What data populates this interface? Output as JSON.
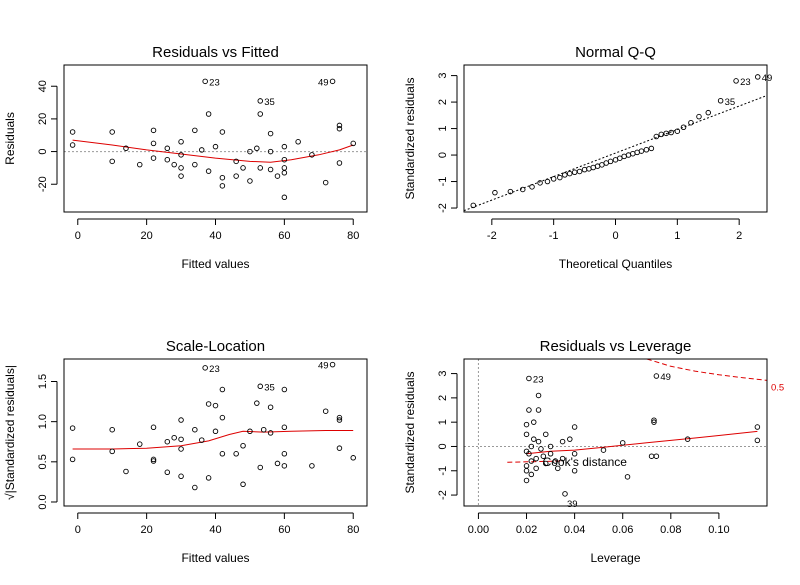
{
  "chart_data": [
    {
      "type": "scatter",
      "title": "Residuals vs Fitted",
      "xlabel": "Fitted values",
      "ylabel": "Residuals",
      "xlim": [
        -4,
        84
      ],
      "ylim": [
        -37,
        53
      ],
      "xticks": [
        0,
        20,
        40,
        60,
        80
      ],
      "yticks": [
        -20,
        0,
        20,
        40
      ],
      "reference_line": {
        "kind": "h",
        "value": 0,
        "style": "dotted",
        "color": "#999999"
      },
      "points": [
        [
          -1.5,
          12
        ],
        [
          -1.5,
          4
        ],
        [
          10,
          12
        ],
        [
          10,
          -6
        ],
        [
          14,
          2
        ],
        [
          18,
          -8
        ],
        [
          22,
          13
        ],
        [
          22,
          5
        ],
        [
          22,
          -4
        ],
        [
          26,
          2
        ],
        [
          26,
          -5
        ],
        [
          28,
          -8
        ],
        [
          30,
          6
        ],
        [
          30,
          -2
        ],
        [
          30,
          -10
        ],
        [
          30,
          -15
        ],
        [
          34,
          13
        ],
        [
          34,
          -8
        ],
        [
          36,
          1
        ],
        [
          37,
          43
        ],
        [
          38,
          23
        ],
        [
          38,
          -12
        ],
        [
          40,
          3
        ],
        [
          42,
          -16
        ],
        [
          42,
          12
        ],
        [
          42,
          -21
        ],
        [
          46,
          -6
        ],
        [
          46,
          -15
        ],
        [
          48,
          -10
        ],
        [
          50,
          0
        ],
        [
          50,
          -18
        ],
        [
          52,
          2
        ],
        [
          53,
          31
        ],
        [
          53,
          23
        ],
        [
          53,
          -10
        ],
        [
          56,
          0
        ],
        [
          56,
          11
        ],
        [
          56,
          -11
        ],
        [
          58,
          -15
        ],
        [
          60,
          3
        ],
        [
          60,
          -5
        ],
        [
          60,
          -10
        ],
        [
          60,
          -28
        ],
        [
          60,
          -13
        ],
        [
          64,
          6
        ],
        [
          68,
          -2
        ],
        [
          72,
          -19
        ],
        [
          74,
          43
        ],
        [
          76,
          16
        ],
        [
          76,
          14
        ],
        [
          76,
          -7
        ],
        [
          80,
          5
        ]
      ],
      "smoother": [
        [
          -1.5,
          7
        ],
        [
          10,
          4
        ],
        [
          20,
          1
        ],
        [
          30,
          -1.5
        ],
        [
          40,
          -4
        ],
        [
          50,
          -6
        ],
        [
          56,
          -6.5
        ],
        [
          62,
          -5
        ],
        [
          70,
          -2
        ],
        [
          76,
          1
        ],
        [
          80,
          4
        ]
      ],
      "smoother_color": "#dd0000",
      "annotations": [
        {
          "text": "23",
          "x": 37,
          "y": 43
        },
        {
          "text": "35",
          "x": 53,
          "y": 31
        },
        {
          "text": "49",
          "x": 74,
          "y": 43
        }
      ]
    },
    {
      "type": "scatter",
      "title": "Normal Q-Q",
      "xlabel": "Theoretical Quantiles",
      "ylabel": "Standardized residuals",
      "xlim": [
        -2.45,
        2.45
      ],
      "ylim": [
        -2.15,
        3.4
      ],
      "xticks": [
        -2,
        -1,
        0,
        1,
        2
      ],
      "yticks": [
        -2,
        -1,
        0,
        1,
        2,
        3
      ],
      "reference_line": {
        "kind": "line",
        "x1": -2.45,
        "y1": -2.1,
        "x2": 2.45,
        "y2": 2.25,
        "style": "dotted",
        "color": "#000000"
      },
      "points": [
        [
          -2.3,
          -1.9
        ],
        [
          -1.95,
          -1.42
        ],
        [
          -1.7,
          -1.38
        ],
        [
          -1.5,
          -1.3
        ],
        [
          -1.35,
          -1.2
        ],
        [
          -1.22,
          -1.05
        ],
        [
          -1.1,
          -1.0
        ],
        [
          -1.0,
          -0.9
        ],
        [
          -0.9,
          -0.85
        ],
        [
          -0.82,
          -0.75
        ],
        [
          -0.74,
          -0.7
        ],
        [
          -0.66,
          -0.65
        ],
        [
          -0.58,
          -0.62
        ],
        [
          -0.5,
          -0.55
        ],
        [
          -0.43,
          -0.52
        ],
        [
          -0.36,
          -0.47
        ],
        [
          -0.29,
          -0.42
        ],
        [
          -0.22,
          -0.37
        ],
        [
          -0.15,
          -0.3
        ],
        [
          -0.08,
          -0.24
        ],
        [
          0.0,
          -0.18
        ],
        [
          0.07,
          -0.12
        ],
        [
          0.14,
          -0.05
        ],
        [
          0.21,
          0.0
        ],
        [
          0.28,
          0.05
        ],
        [
          0.35,
          0.1
        ],
        [
          0.42,
          0.15
        ],
        [
          0.5,
          0.2
        ],
        [
          0.58,
          0.25
        ],
        [
          0.66,
          0.7
        ],
        [
          0.74,
          0.78
        ],
        [
          0.82,
          0.82
        ],
        [
          0.9,
          0.85
        ],
        [
          1.0,
          0.9
        ],
        [
          1.1,
          1.05
        ],
        [
          1.22,
          1.22
        ],
        [
          1.35,
          1.45
        ],
        [
          1.5,
          1.6
        ],
        [
          1.7,
          2.05
        ],
        [
          1.95,
          2.8
        ],
        [
          2.3,
          2.95
        ]
      ],
      "annotations": [
        {
          "text": "23",
          "x": 1.95,
          "y": 2.8
        },
        {
          "text": "35",
          "x": 1.7,
          "y": 2.05
        },
        {
          "text": "49",
          "x": 2.3,
          "y": 2.95
        }
      ]
    },
    {
      "type": "scatter",
      "title": "Scale-Location",
      "xlabel": "Fitted values",
      "ylabel": "√|Standardized residuals|",
      "xlim": [
        -4,
        84
      ],
      "ylim": [
        -0.05,
        1.78
      ],
      "xticks": [
        0,
        20,
        40,
        60,
        80
      ],
      "yticks": [
        0.0,
        0.5,
        1.0,
        1.5
      ],
      "yticklabels": [
        "0.0",
        "0.5",
        "1.0",
        "1.5"
      ],
      "points": [
        [
          -1.5,
          0.92
        ],
        [
          -1.5,
          0.53
        ],
        [
          10,
          0.9
        ],
        [
          10,
          0.63
        ],
        [
          14,
          0.38
        ],
        [
          18,
          0.72
        ],
        [
          22,
          0.93
        ],
        [
          22,
          0.53
        ],
        [
          22,
          0.51
        ],
        [
          26,
          0.37
        ],
        [
          26,
          0.75
        ],
        [
          28,
          0.8
        ],
        [
          30,
          1.02
        ],
        [
          30,
          0.32
        ],
        [
          30,
          0.66
        ],
        [
          30,
          0.78
        ],
        [
          34,
          0.9
        ],
        [
          34,
          0.18
        ],
        [
          36,
          0.77
        ],
        [
          37,
          1.67
        ],
        [
          38,
          1.22
        ],
        [
          38,
          0.3
        ],
        [
          40,
          0.88
        ],
        [
          40,
          1.2
        ],
        [
          42,
          1.05
        ],
        [
          42,
          1.4
        ],
        [
          42,
          0.6
        ],
        [
          46,
          0.6
        ],
        [
          48,
          0.22
        ],
        [
          48,
          0.7
        ],
        [
          50,
          0.88
        ],
        [
          52,
          1.23
        ],
        [
          53,
          1.44
        ],
        [
          53,
          0.43
        ],
        [
          54,
          0.9
        ],
        [
          56,
          0.86
        ],
        [
          56,
          1.18
        ],
        [
          58,
          0.48
        ],
        [
          60,
          1.4
        ],
        [
          60,
          0.93
        ],
        [
          60,
          0.6
        ],
        [
          60,
          0.45
        ],
        [
          68,
          0.45
        ],
        [
          72,
          1.13
        ],
        [
          74,
          1.71
        ],
        [
          76,
          1.05
        ],
        [
          76,
          1.02
        ],
        [
          76,
          0.67
        ],
        [
          80,
          0.55
        ]
      ],
      "smoother": [
        [
          -1.5,
          0.66
        ],
        [
          10,
          0.66
        ],
        [
          20,
          0.67
        ],
        [
          30,
          0.7
        ],
        [
          38,
          0.76
        ],
        [
          44,
          0.84
        ],
        [
          48,
          0.88
        ],
        [
          54,
          0.87
        ],
        [
          62,
          0.88
        ],
        [
          72,
          0.89
        ],
        [
          80,
          0.89
        ]
      ],
      "smoother_color": "#dd0000",
      "annotations": [
        {
          "text": "23",
          "x": 37,
          "y": 1.67
        },
        {
          "text": "35",
          "x": 53,
          "y": 1.44
        },
        {
          "text": "49",
          "x": 74,
          "y": 1.71
        }
      ]
    },
    {
      "type": "scatter",
      "title": "Residuals vs Leverage",
      "xlabel": "Leverage",
      "ylabel": "Standardized residuals",
      "xlim": [
        -0.006,
        0.12
      ],
      "ylim": [
        -2.45,
        3.6
      ],
      "xticks": [
        0.0,
        0.02,
        0.04,
        0.06,
        0.08,
        0.1
      ],
      "xticklabels": [
        "0.00",
        "0.02",
        "0.04",
        "0.06",
        "0.08",
        "0.10"
      ],
      "yticks": [
        -2,
        -1,
        0,
        1,
        2,
        3
      ],
      "reference_lines": [
        {
          "kind": "h",
          "value": 0,
          "style": "dotted",
          "color": "#999999"
        },
        {
          "kind": "v",
          "value": 0,
          "style": "dotted",
          "color": "#999999"
        }
      ],
      "points": [
        [
          0.02,
          0.9
        ],
        [
          0.02,
          0.5
        ],
        [
          0.02,
          -0.2
        ],
        [
          0.02,
          -0.8
        ],
        [
          0.02,
          -1.0
        ],
        [
          0.02,
          -1.4
        ],
        [
          0.021,
          2.8
        ],
        [
          0.021,
          1.5
        ],
        [
          0.021,
          -0.3
        ],
        [
          0.022,
          0.0
        ],
        [
          0.022,
          -0.6
        ],
        [
          0.022,
          -1.15
        ],
        [
          0.023,
          1.0
        ],
        [
          0.023,
          0.3
        ],
        [
          0.024,
          -0.5
        ],
        [
          0.024,
          -0.9
        ],
        [
          0.025,
          2.1
        ],
        [
          0.025,
          1.5
        ],
        [
          0.025,
          0.2
        ],
        [
          0.026,
          -0.1
        ],
        [
          0.027,
          -0.4
        ],
        [
          0.028,
          0.5
        ],
        [
          0.028,
          -0.7
        ],
        [
          0.03,
          0.0
        ],
        [
          0.03,
          -0.3
        ],
        [
          0.032,
          -0.6
        ],
        [
          0.033,
          -0.9
        ],
        [
          0.035,
          0.2
        ],
        [
          0.035,
          -0.5
        ],
        [
          0.036,
          -1.95
        ],
        [
          0.038,
          0.3
        ],
        [
          0.04,
          0.8
        ],
        [
          0.04,
          -0.3
        ],
        [
          0.04,
          -1.0
        ],
        [
          0.052,
          -0.15
        ],
        [
          0.06,
          0.15
        ],
        [
          0.062,
          -1.25
        ],
        [
          0.072,
          -0.4
        ],
        [
          0.073,
          1.0
        ],
        [
          0.073,
          1.08
        ],
        [
          0.074,
          2.9
        ],
        [
          0.074,
          -0.4
        ],
        [
          0.087,
          0.3
        ],
        [
          0.116,
          0.8
        ],
        [
          0.116,
          0.25
        ]
      ],
      "smoother": [
        [
          0.02,
          -0.3
        ],
        [
          0.03,
          -0.2
        ],
        [
          0.04,
          -0.15
        ],
        [
          0.05,
          -0.05
        ],
        [
          0.06,
          0.05
        ],
        [
          0.07,
          0.15
        ],
        [
          0.08,
          0.25
        ],
        [
          0.09,
          0.35
        ],
        [
          0.1,
          0.45
        ],
        [
          0.116,
          0.62
        ]
      ],
      "smoother_color": "#dd0000",
      "cooks_distance": {
        "label": "Cook's distance",
        "color": "#dd0000",
        "contour_label": "0.5",
        "upper": [
          [
            0.07,
            3.6
          ],
          [
            0.08,
            3.3
          ],
          [
            0.09,
            3.1
          ],
          [
            0.1,
            2.95
          ],
          [
            0.11,
            2.83
          ],
          [
            0.12,
            2.72
          ]
        ],
        "lower": [
          [
            0.012,
            -0.65
          ],
          [
            0.035,
            -0.6
          ]
        ]
      },
      "annotations": [
        {
          "text": "23",
          "x": 0.021,
          "y": 2.8
        },
        {
          "text": "49",
          "x": 0.074,
          "y": 2.9
        },
        {
          "text": "39",
          "x": 0.036,
          "y": -1.95
        }
      ]
    }
  ]
}
